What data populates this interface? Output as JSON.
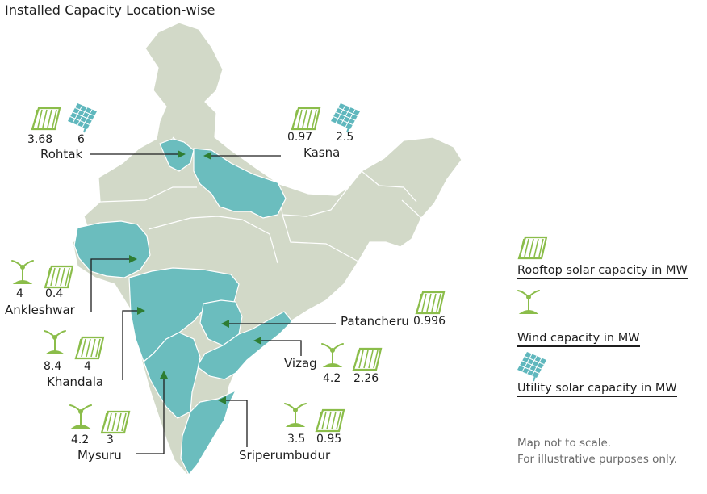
{
  "title": "Installed Capacity Location-wise",
  "colors": {
    "base_map": "#d2d9c8",
    "highlight": "#6bbdbe",
    "state_border": "#ffffff",
    "icon_green": "#8bbd4a",
    "icon_utility": "#5fb7bd",
    "arrow": "#2e7d32",
    "leader": "#1e1e1e"
  },
  "locations": [
    {
      "name": "Rohtak",
      "values": [
        {
          "icon": "rooftop-solar-icon",
          "value": "3.68"
        },
        {
          "icon": "utility-solar-icon",
          "value": "6"
        }
      ]
    },
    {
      "name": "Kasna",
      "values": [
        {
          "icon": "rooftop-solar-icon",
          "value": "0.97"
        },
        {
          "icon": "utility-solar-icon",
          "value": "2.5"
        }
      ]
    },
    {
      "name": "Ankleshwar",
      "values": [
        {
          "icon": "wind-turbine-icon",
          "value": "4"
        },
        {
          "icon": "rooftop-solar-icon",
          "value": "0.4"
        }
      ]
    },
    {
      "name": "Patancheru",
      "values": [
        {
          "icon": "rooftop-solar-icon",
          "value": "0.996"
        }
      ]
    },
    {
      "name": "Khandala",
      "values": [
        {
          "icon": "wind-turbine-icon",
          "value": "8.4"
        },
        {
          "icon": "rooftop-solar-icon",
          "value": "4"
        }
      ]
    },
    {
      "name": "Vizag",
      "values": [
        {
          "icon": "wind-turbine-icon",
          "value": "4.2"
        },
        {
          "icon": "rooftop-solar-icon",
          "value": "2.26"
        }
      ]
    },
    {
      "name": "Mysuru",
      "values": [
        {
          "icon": "wind-turbine-icon",
          "value": "4.2"
        },
        {
          "icon": "rooftop-solar-icon",
          "value": "3"
        }
      ]
    },
    {
      "name": "Sriperumbudur",
      "values": [
        {
          "icon": "wind-turbine-icon",
          "value": "3.5"
        },
        {
          "icon": "rooftop-solar-icon",
          "value": "0.95"
        }
      ]
    }
  ],
  "legend": [
    {
      "icon": "rooftop-solar-icon",
      "label": "Rooftop solar capacity in MW"
    },
    {
      "icon": "wind-turbine-icon",
      "label": "Wind capacity in MW"
    },
    {
      "icon": "utility-solar-icon",
      "label": "Utility solar capacity in MW"
    }
  ],
  "notes": [
    "Map not to scale.",
    "For illustrative purposes only."
  ]
}
